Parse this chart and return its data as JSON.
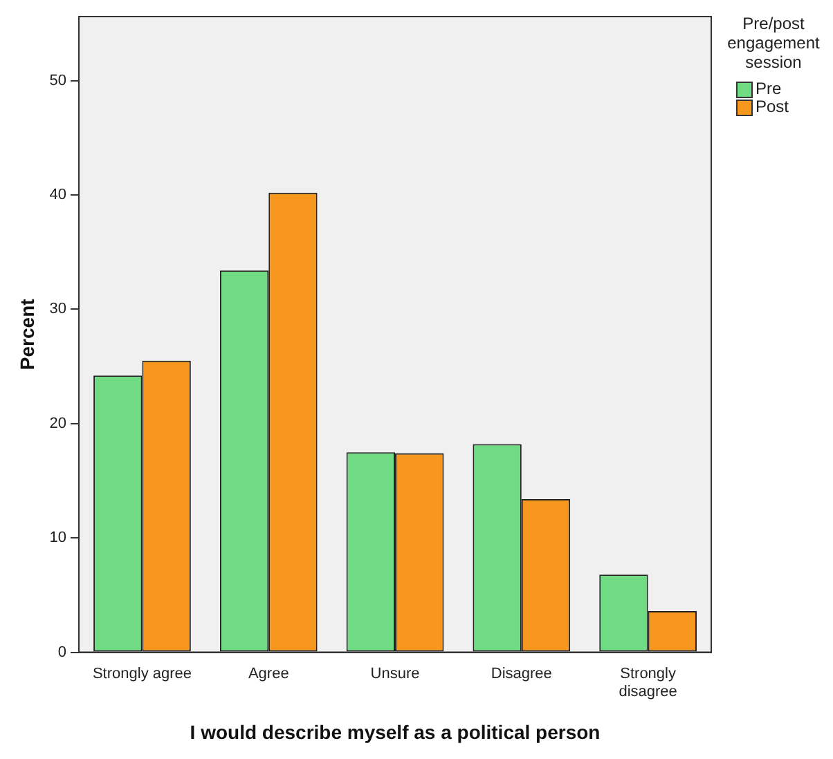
{
  "chart_data": {
    "type": "bar",
    "xlabel": "I would describe myself as a political person",
    "ylabel": "Percent",
    "legend_title": "Pre/post engagement session",
    "legend": "top right",
    "categories": [
      "Strongly agree",
      "Agree",
      "Unsure",
      "Disagree",
      "Strongly disagree"
    ],
    "series": [
      {
        "name": "Pre",
        "color": "#6fdc84",
        "values": [
          24.2,
          33.4,
          17.5,
          18.2,
          6.8
        ]
      },
      {
        "name": "Post",
        "color": "#f7971e",
        "values": [
          25.5,
          40.2,
          17.4,
          13.4,
          3.6
        ]
      }
    ],
    "ylim": [
      0,
      55.6
    ],
    "yticks": [
      0,
      10,
      20,
      30,
      40,
      50
    ],
    "grid": false
  }
}
